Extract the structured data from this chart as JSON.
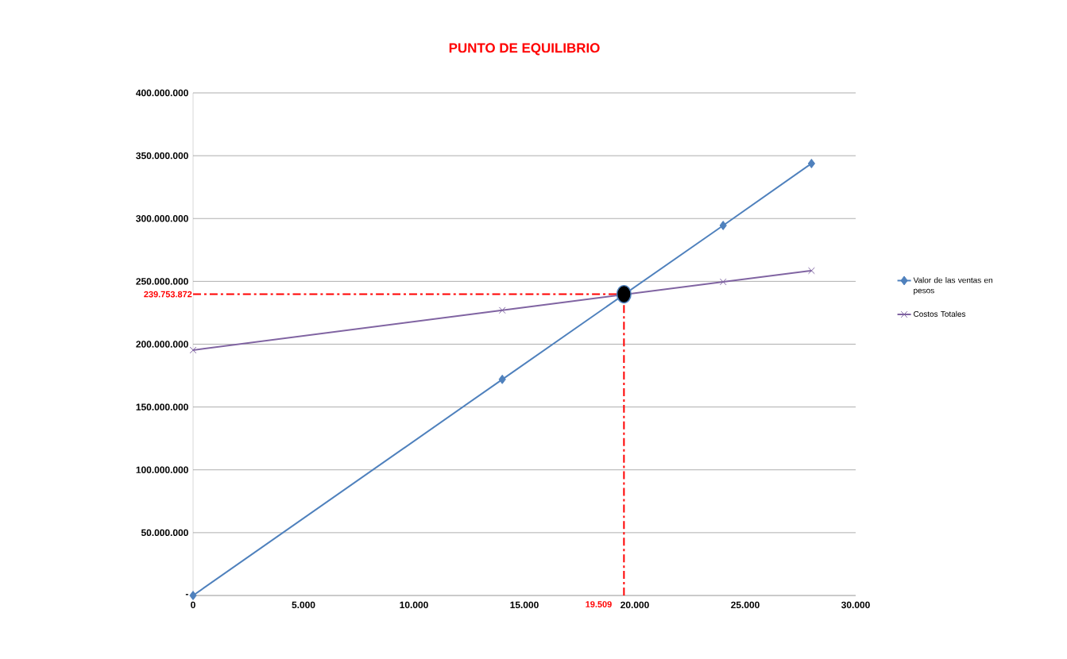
{
  "chart_data": {
    "type": "line",
    "title": "PUNTO DE EQUILIBRIO",
    "xlim": [
      0,
      30000
    ],
    "xticks": [
      0,
      {
        "value": 5000,
        "label": "5.000"
      },
      {
        "value": 10000,
        "label": "10.000"
      },
      {
        "value": 15000,
        "label": "15.000"
      },
      {
        "value": 20000,
        "label": "20.000"
      },
      {
        "value": 25000,
        "label": "25.000"
      },
      {
        "value": 30000,
        "label": "30.000"
      }
    ],
    "ylim": [
      0,
      400000000
    ],
    "yticks": [
      {
        "value": 0,
        "label": "-"
      },
      {
        "value": 50000000,
        "label": "50.000.000"
      },
      {
        "value": 100000000,
        "label": "100.000.000"
      },
      {
        "value": 150000000,
        "label": "150.000.000"
      },
      {
        "value": 200000000,
        "label": "200.000.000"
      },
      {
        "value": 250000000,
        "label": "250.000.000"
      },
      {
        "value": 300000000,
        "label": "300.000.000"
      },
      {
        "value": 350000000,
        "label": "350.000.000"
      },
      {
        "value": 400000000,
        "label": "400.000.000"
      }
    ],
    "grid": "y",
    "legend": "right",
    "series": [
      {
        "name": "Valor de las ventas en pesos",
        "color": "#4f81bd",
        "marker": "diamond",
        "x": [
          0,
          14000,
          24000,
          28000
        ],
        "values": [
          0,
          172000000,
          294500000,
          343800000
        ]
      },
      {
        "name": "Costos Totales",
        "color": "#8064a2",
        "marker": "cross",
        "x": [
          0,
          14000,
          24000,
          28000
        ],
        "values": [
          195300000,
          227000000,
          249600000,
          258500000
        ]
      },
      {
        "type": "scatter",
        "color": "#000000",
        "marker": "circle",
        "x": [
          19509
        ],
        "values": [
          239753872
        ]
      }
    ],
    "ref_lines": [
      {
        "axis": "y",
        "value": 239753872,
        "label": "239.753.872",
        "color": "#ff0000",
        "line_style": "dashed"
      },
      {
        "axis": "x",
        "value": 19509,
        "label": "19.509",
        "color": "#ff0000",
        "line_style": "dashed"
      }
    ]
  }
}
